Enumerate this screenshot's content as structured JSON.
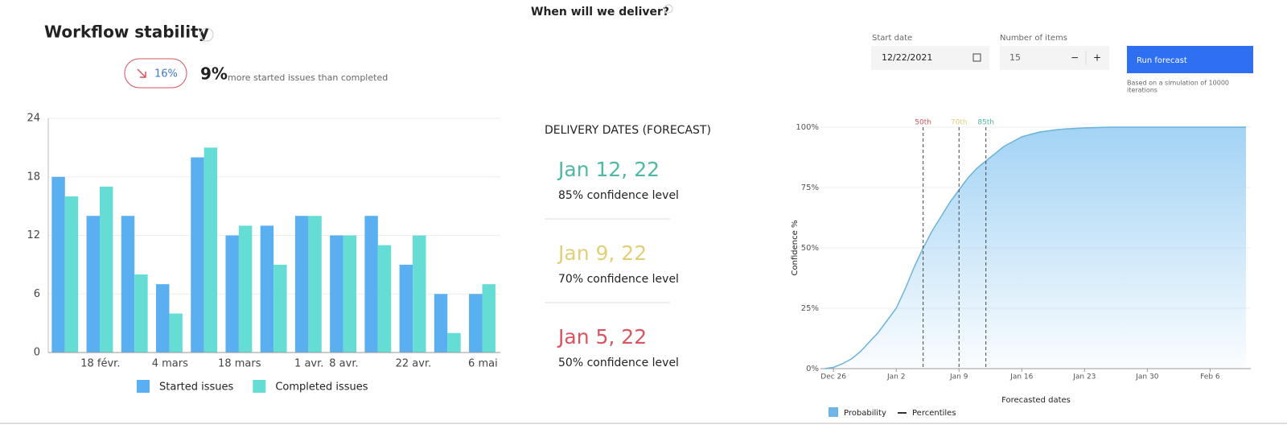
{
  "page_title": "When will we deliver?",
  "stability": {
    "badge": "16%",
    "stat": "9%",
    "stat_text": "more started issues than completed"
  },
  "forecast": {
    "heading": "DELIVERY DATES (FORECAST)",
    "items": [
      {
        "date": "Jan 12, 22",
        "confidence": "85% confidence level",
        "color": "#4fb8a6"
      },
      {
        "date": "Jan 9, 22",
        "confidence": "70% confidence level",
        "color": "#e3cf78"
      },
      {
        "date": "Jan 5, 22",
        "confidence": "50% confidence level",
        "color": "#d9545f"
      }
    ]
  },
  "form": {
    "start_label": "Start date",
    "start_value": "12/22/2021",
    "items_label": "Number of items",
    "items_value": "15",
    "minus": "−",
    "plus": "+",
    "button": "Run forecast",
    "note": [
      "Based on a simulation of 10000",
      "iterations"
    ]
  },
  "chart_data": [
    {
      "type": "bar",
      "title": "Workflow stability",
      "categories": [
        null,
        "18 févr.",
        null,
        "4 mars",
        null,
        "18 mars",
        null,
        "1 avr.",
        "8 avr.",
        null,
        "22 avr.",
        null,
        "6 mai"
      ],
      "series": [
        {
          "name": "Started issues",
          "color": "#5aaff0",
          "values": [
            18,
            14,
            14,
            7,
            20,
            12,
            13,
            14,
            12,
            14,
            9,
            6,
            6
          ]
        },
        {
          "name": "Completed issues",
          "color": "#66ddd4",
          "values": [
            16,
            17,
            8,
            4,
            21,
            13,
            9,
            14,
            12,
            11,
            12,
            2,
            7
          ]
        }
      ],
      "ylim": [
        0,
        24
      ],
      "yticks": [
        0,
        6,
        12,
        18,
        24
      ],
      "grid": true
    },
    {
      "type": "area",
      "x_label": "Forecasted dates",
      "y_label": "Confidence %",
      "x": [
        "Dec 25",
        "Dec 26",
        "Dec 27",
        "Dec 28",
        "Dec 29",
        "Dec 30",
        "Dec 31",
        "Jan 1",
        "Jan 2",
        "Jan 3",
        "Jan 4",
        "Jan 5",
        "Jan 6",
        "Jan 7",
        "Jan 8",
        "Jan 9",
        "Jan 10",
        "Jan 11",
        "Jan 12",
        "Jan 13",
        "Jan 14",
        "Jan 15",
        "Jan 16",
        "Jan 17",
        "Jan 18",
        "Jan 19",
        "Jan 20",
        "Jan 21",
        "Jan 22",
        "Jan 23",
        "Jan 24",
        "Jan 25",
        "Jan 26",
        "Jan 27",
        "Jan 28",
        "Jan 29",
        "Jan 30",
        "Jan 31",
        "Feb 1",
        "Feb 2",
        "Feb 3",
        "Feb 4",
        "Feb 5",
        "Feb 6",
        "Feb 7",
        "Feb 8",
        "Feb 9",
        "Feb 10"
      ],
      "series": [
        {
          "name": "Probability",
          "color": "#6bb3dc",
          "values": [
            0,
            0.5,
            2,
            4,
            7,
            11,
            15,
            20,
            25,
            33,
            42,
            50,
            57,
            63,
            69,
            74,
            79,
            83,
            86,
            89,
            92,
            94,
            96,
            97,
            98,
            98.5,
            99,
            99.3,
            99.5,
            99.7,
            99.8,
            99.9,
            100,
            100,
            100,
            100,
            100,
            100,
            100,
            100,
            100,
            100,
            100,
            100,
            100,
            100,
            100,
            100
          ]
        }
      ],
      "annotation_legend": "Percentiles",
      "annotations": [
        {
          "x": "Jan 5",
          "label": "50th",
          "color": "#d9545f"
        },
        {
          "x": "Jan 9",
          "label": "70th",
          "color": "#e3cf78"
        },
        {
          "x": "Jan 12",
          "label": "85th",
          "color": "#4fb8a6"
        }
      ],
      "xticks": [
        "Dec 26",
        "Jan 2",
        "Jan 9",
        "Jan 16",
        "Jan 23",
        "Jan 30",
        "Feb 6"
      ],
      "ylim": [
        0,
        100
      ],
      "yticks": [
        {
          "value": 0,
          "label": "0%"
        },
        {
          "value": 25,
          "label": "25%"
        },
        {
          "value": 50,
          "label": "50%"
        },
        {
          "value": 75,
          "label": "75%"
        },
        {
          "value": 100,
          "label": "100%"
        }
      ],
      "grid": true
    }
  ]
}
